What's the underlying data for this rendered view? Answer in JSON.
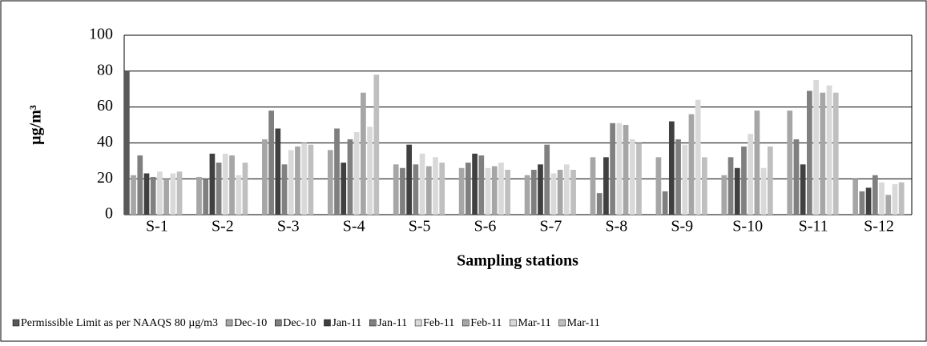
{
  "chart_data": {
    "type": "bar",
    "y_label": "µg/m³",
    "x_label": "Sampling stations",
    "categories": [
      "S-1",
      "S-2",
      "S-3",
      "S-4",
      "S-5",
      "S-6",
      "S-7",
      "S-8",
      "S-9",
      "S-10",
      "S-11",
      "S-12"
    ],
    "ylim": [
      0,
      100
    ],
    "yticks": [
      0,
      20,
      40,
      60,
      80,
      100
    ],
    "grid": true,
    "series": [
      {
        "name": "Permissible Limit as per NAAQS 80 µg/m3",
        "color": "#595959",
        "values": [
          80,
          null,
          null,
          null,
          null,
          null,
          null,
          null,
          null,
          null,
          null,
          null
        ]
      },
      {
        "name": "Dec-10",
        "color": "#a6a6a6",
        "values": [
          22,
          21,
          42,
          36,
          28,
          26,
          22,
          32,
          32,
          22,
          58,
          20
        ]
      },
      {
        "name": "Dec-10",
        "color": "#7f7f7f",
        "values": [
          33,
          20,
          58,
          48,
          26,
          29,
          25,
          12,
          13,
          32,
          42,
          13
        ]
      },
      {
        "name": "Jan-11",
        "color": "#404040",
        "values": [
          23,
          34,
          48,
          29,
          39,
          34,
          28,
          32,
          52,
          26,
          28,
          15
        ]
      },
      {
        "name": "Jan-11",
        "color": "#808080",
        "values": [
          21,
          29,
          28,
          42,
          28,
          33,
          39,
          51,
          42,
          38,
          69,
          22
        ]
      },
      {
        "name": "Feb-11",
        "color": "#d9d9d9",
        "values": [
          24,
          34,
          36,
          46,
          34,
          26,
          23,
          51,
          39,
          45,
          75,
          18
        ]
      },
      {
        "name": "Feb-11",
        "color": "#a6a6a6",
        "values": [
          20,
          33,
          38,
          68,
          27,
          27,
          25,
          50,
          56,
          58,
          68,
          11
        ]
      },
      {
        "name": "Mar-11",
        "color": "#d9d9d9",
        "values": [
          23,
          22,
          40,
          49,
          32,
          29,
          28,
          42,
          64,
          26,
          72,
          17
        ]
      },
      {
        "name": "Mar-11",
        "color": "#bfbfbf",
        "values": [
          24,
          29,
          39,
          78,
          29,
          25,
          25,
          40,
          32,
          38,
          68,
          18
        ]
      }
    ]
  }
}
